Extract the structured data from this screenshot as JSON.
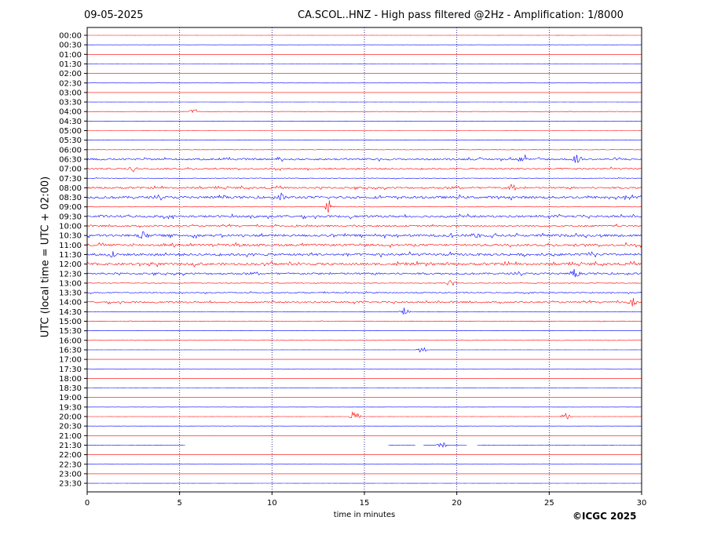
{
  "header": {
    "date": "09-05-2025",
    "title": "CA.SCOL..HNZ - High pass filtered @2Hz - Amplification: 1/8000"
  },
  "copyright": "©ICGC 2025",
  "chart_data": {
    "type": "line",
    "title": "CA.SCOL..HNZ - High pass filtered @2Hz - Amplification: 1/8000",
    "xlabel": "time in minutes",
    "ylabel": "UTC (local time = UTC + 02:00)",
    "xlim": [
      0,
      30
    ],
    "x_ticks": [
      "0",
      "5",
      "10",
      "15",
      "20",
      "25",
      "30"
    ],
    "grid": "vertical dotted at 5-minute intervals",
    "trace_colors": [
      "#ff0000",
      "#0000ff"
    ],
    "rows": [
      {
        "label": "00:00",
        "activity": 0.02
      },
      {
        "label": "00:30",
        "activity": 0.02
      },
      {
        "label": "01:00",
        "activity": 0.01
      },
      {
        "label": "01:30",
        "activity": 0.01
      },
      {
        "label": "02:00",
        "activity": 0.01
      },
      {
        "label": "02:30",
        "activity": 0.02
      },
      {
        "label": "03:00",
        "activity": 0.01
      },
      {
        "label": "03:30",
        "activity": 0.02
      },
      {
        "label": "04:00",
        "activity": 0.05
      },
      {
        "label": "04:30",
        "activity": 0.02
      },
      {
        "label": "05:00",
        "activity": 0.02
      },
      {
        "label": "05:30",
        "activity": 0.03
      },
      {
        "label": "06:00",
        "activity": 0.08
      },
      {
        "label": "06:30",
        "activity": 0.35
      },
      {
        "label": "07:00",
        "activity": 0.3
      },
      {
        "label": "07:30",
        "activity": 0.12
      },
      {
        "label": "08:00",
        "activity": 0.35
      },
      {
        "label": "08:30",
        "activity": 0.45
      },
      {
        "label": "09:00",
        "activity": 0.06
      },
      {
        "label": "09:30",
        "activity": 0.4
      },
      {
        "label": "10:00",
        "activity": 0.3
      },
      {
        "label": "10:30",
        "activity": 0.45
      },
      {
        "label": "11:00",
        "activity": 0.4
      },
      {
        "label": "11:30",
        "activity": 0.45
      },
      {
        "label": "12:00",
        "activity": 0.45
      },
      {
        "label": "12:30",
        "activity": 0.35
      },
      {
        "label": "13:00",
        "activity": 0.12
      },
      {
        "label": "13:30",
        "activity": 0.2
      },
      {
        "label": "14:00",
        "activity": 0.3
      },
      {
        "label": "14:30",
        "activity": 0.05
      },
      {
        "label": "15:00",
        "activity": 0.12
      },
      {
        "label": "15:30",
        "activity": 0.03
      },
      {
        "label": "16:00",
        "activity": 0.05
      },
      {
        "label": "16:30",
        "activity": 0.03
      },
      {
        "label": "17:00",
        "activity": 0.01
      },
      {
        "label": "17:30",
        "activity": 0.02
      },
      {
        "label": "18:00",
        "activity": 0.01
      },
      {
        "label": "18:30",
        "activity": 0.01
      },
      {
        "label": "19:00",
        "activity": 0.01
      },
      {
        "label": "19:30",
        "activity": 0.02
      },
      {
        "label": "20:00",
        "activity": 0.03
      },
      {
        "label": "20:30",
        "activity": 0.01
      },
      {
        "label": "21:00",
        "activity": 0.01
      },
      {
        "label": "21:30",
        "activity": 0.05
      },
      {
        "label": "22:00",
        "activity": 0.01
      },
      {
        "label": "22:30",
        "activity": 0.01
      },
      {
        "label": "23:00",
        "activity": 0.01
      },
      {
        "label": "23:30",
        "activity": 0.02
      }
    ],
    "events": [
      {
        "row": "04:00",
        "minute": 5.8,
        "amp": 0.35
      },
      {
        "row": "06:30",
        "minute": 23.6,
        "amp": 0.6
      },
      {
        "row": "06:30",
        "minute": 26.5,
        "amp": 0.5
      },
      {
        "row": "07:00",
        "minute": 2.5,
        "amp": 0.3
      },
      {
        "row": "08:00",
        "minute": 23.0,
        "amp": 0.4
      },
      {
        "row": "08:30",
        "minute": 10.5,
        "amp": 0.4
      },
      {
        "row": "09:00",
        "minute": 13.1,
        "amp": 0.7
      },
      {
        "row": "10:30",
        "minute": 3.0,
        "amp": 0.5
      },
      {
        "row": "10:30",
        "minute": 21.0,
        "amp": 0.4
      },
      {
        "row": "11:30",
        "minute": 1.3,
        "amp": 0.5
      },
      {
        "row": "12:30",
        "minute": 26.4,
        "amp": 0.6
      },
      {
        "row": "13:00",
        "minute": 19.7,
        "amp": 0.6
      },
      {
        "row": "14:00",
        "minute": 29.5,
        "amp": 0.5
      },
      {
        "row": "14:30",
        "minute": 17.2,
        "amp": 0.6
      },
      {
        "row": "16:30",
        "minute": 18.1,
        "amp": 0.4
      },
      {
        "row": "20:00",
        "minute": 14.5,
        "amp": 0.9
      },
      {
        "row": "20:00",
        "minute": 25.9,
        "amp": 0.4
      },
      {
        "row": "21:30",
        "minute": 19.2,
        "amp": 0.4
      }
    ],
    "gaps": [
      {
        "row": "21:30",
        "from": 5.3,
        "to": 16.3
      },
      {
        "row": "21:30",
        "from": 17.8,
        "to": 18.2
      },
      {
        "row": "21:30",
        "from": 20.6,
        "to": 21.1
      }
    ]
  }
}
